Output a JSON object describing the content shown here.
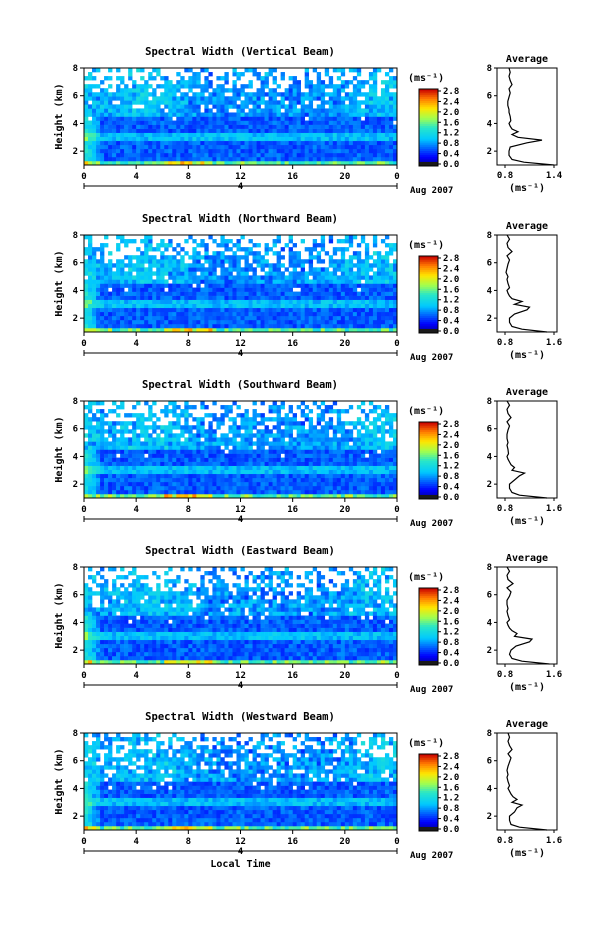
{
  "chart_data": [
    {
      "type": "heatmap",
      "title": "Spectral Width (Vertical Beam)",
      "ylabel": "Height (km)",
      "y_ticks": [
        "2",
        "4",
        "6",
        "8"
      ],
      "ylim": [
        1,
        8
      ],
      "x_ticks": [
        "0",
        "4",
        "8",
        "12",
        "16",
        "20",
        "0"
      ],
      "xlim": [
        0,
        24
      ],
      "date_marker": "4",
      "date_label": "Aug 2007",
      "colorbar": {
        "unit": "(ms⁻¹)",
        "ticks": [
          "0.0",
          "0.4",
          "0.8",
          "1.2",
          "1.6",
          "2.0",
          "2.4",
          "2.8"
        ]
      },
      "average": {
        "title": "Average",
        "xlabel": "(ms⁻¹)",
        "x_ticks": [
          "0.8",
          "1.4"
        ],
        "xlim": [
          0.6,
          1.6
        ],
        "y_ticks": [
          "2",
          "4",
          "6",
          "8"
        ],
        "profile_height": [
          1.0,
          1.2,
          1.4,
          1.7,
          2.0,
          2.3,
          2.6,
          2.8,
          3.0,
          3.2,
          3.4,
          3.6,
          3.8,
          4.0,
          4.2,
          4.5,
          4.8,
          5.0,
          5.3,
          5.6,
          5.9,
          6.2,
          6.5,
          6.8,
          7.1,
          7.4,
          7.7,
          8.0
        ],
        "profile_value": [
          1.55,
          1.05,
          0.85,
          0.8,
          0.8,
          0.82,
          1.1,
          1.35,
          0.95,
          0.85,
          0.95,
          0.85,
          0.82,
          0.8,
          0.83,
          0.82,
          0.8,
          0.8,
          0.78,
          0.78,
          0.8,
          0.82,
          0.8,
          0.85,
          0.82,
          0.8,
          0.82,
          0.8
        ]
      }
    },
    {
      "type": "heatmap",
      "title": "Spectral Width (Northward Beam)",
      "ylabel": "Height (km)",
      "y_ticks": [
        "2",
        "4",
        "6",
        "8"
      ],
      "ylim": [
        1,
        8
      ],
      "x_ticks": [
        "0",
        "4",
        "8",
        "12",
        "16",
        "20",
        "0"
      ],
      "xlim": [
        0,
        24
      ],
      "date_marker": "4",
      "date_label": "Aug 2007",
      "colorbar": {
        "unit": "(ms⁻¹)",
        "ticks": [
          "0.0",
          "0.4",
          "0.8",
          "1.2",
          "1.6",
          "2.0",
          "2.4",
          "2.8"
        ]
      },
      "average": {
        "title": "Average",
        "xlabel": "(ms⁻¹)",
        "x_ticks": [
          "0.8",
          "1.6"
        ],
        "xlim": [
          0.6,
          1.8
        ],
        "y_ticks": [
          "2",
          "4",
          "6",
          "8"
        ],
        "profile_height": [
          1.0,
          1.2,
          1.4,
          1.7,
          2.0,
          2.3,
          2.6,
          2.8,
          3.0,
          3.2,
          3.4,
          3.6,
          3.8,
          4.0,
          4.2,
          4.5,
          4.8,
          5.0,
          5.3,
          5.6,
          5.9,
          6.2,
          6.5,
          6.8,
          7.1,
          7.4,
          7.7,
          8.0
        ],
        "profile_value": [
          1.6,
          1.1,
          0.9,
          0.85,
          0.85,
          0.95,
          1.2,
          1.25,
          0.95,
          1.1,
          0.9,
          0.85,
          0.82,
          0.8,
          0.85,
          0.82,
          0.8,
          0.82,
          0.78,
          0.8,
          0.82,
          0.85,
          0.8,
          0.9,
          0.82,
          0.8,
          0.85,
          0.8
        ]
      }
    },
    {
      "type": "heatmap",
      "title": "Spectral Width (Southward Beam)",
      "ylabel": "Height (km)",
      "y_ticks": [
        "2",
        "4",
        "6",
        "8"
      ],
      "ylim": [
        1,
        8
      ],
      "x_ticks": [
        "0",
        "4",
        "8",
        "12",
        "16",
        "20",
        "0"
      ],
      "xlim": [
        0,
        24
      ],
      "date_marker": "4",
      "date_label": "Aug 2007",
      "colorbar": {
        "unit": "(ms⁻¹)",
        "ticks": [
          "0.0",
          "0.4",
          "0.8",
          "1.2",
          "1.6",
          "2.0",
          "2.4",
          "2.8"
        ]
      },
      "average": {
        "title": "Average",
        "xlabel": "(ms⁻¹)",
        "x_ticks": [
          "0.8",
          "1.6"
        ],
        "xlim": [
          0.6,
          1.8
        ],
        "y_ticks": [
          "2",
          "4",
          "6",
          "8"
        ],
        "profile_height": [
          1.0,
          1.2,
          1.4,
          1.7,
          2.0,
          2.3,
          2.6,
          2.8,
          3.0,
          3.2,
          3.4,
          3.6,
          3.8,
          4.0,
          4.2,
          4.5,
          4.8,
          5.0,
          5.3,
          5.6,
          5.9,
          6.2,
          6.5,
          6.8,
          7.1,
          7.4,
          7.7,
          8.0
        ],
        "profile_value": [
          1.6,
          1.05,
          0.9,
          0.85,
          0.85,
          0.95,
          1.05,
          1.15,
          0.9,
          0.95,
          0.88,
          0.85,
          0.82,
          0.8,
          0.83,
          0.82,
          0.8,
          0.82,
          0.8,
          0.8,
          0.82,
          0.85,
          0.8,
          0.88,
          0.82,
          0.8,
          0.85,
          0.8
        ]
      }
    },
    {
      "type": "heatmap",
      "title": "Spectral Width (Eastward Beam)",
      "ylabel": "Height (km)",
      "y_ticks": [
        "2",
        "4",
        "6",
        "8"
      ],
      "ylim": [
        1,
        8
      ],
      "x_ticks": [
        "0",
        "4",
        "8",
        "12",
        "16",
        "20",
        "0"
      ],
      "xlim": [
        0,
        24
      ],
      "date_marker": "4",
      "date_label": "Aug 2007",
      "colorbar": {
        "unit": "(ms⁻¹)",
        "ticks": [
          "0.0",
          "0.4",
          "0.8",
          "1.2",
          "1.6",
          "2.0",
          "2.4",
          "2.8"
        ]
      },
      "average": {
        "title": "Average",
        "xlabel": "(ms⁻¹)",
        "x_ticks": [
          "0.8",
          "1.6"
        ],
        "xlim": [
          0.6,
          1.8
        ],
        "y_ticks": [
          "2",
          "4",
          "6",
          "8"
        ],
        "profile_height": [
          1.0,
          1.2,
          1.4,
          1.7,
          2.0,
          2.3,
          2.6,
          2.8,
          3.0,
          3.2,
          3.4,
          3.6,
          3.8,
          4.0,
          4.2,
          4.5,
          4.8,
          5.0,
          5.3,
          5.6,
          5.9,
          6.2,
          6.5,
          6.8,
          7.1,
          7.4,
          7.7,
          8.0
        ],
        "profile_value": [
          1.65,
          1.1,
          0.9,
          0.85,
          0.88,
          0.98,
          1.25,
          1.3,
          0.95,
          1.0,
          0.9,
          0.85,
          0.82,
          0.8,
          0.85,
          0.82,
          0.8,
          0.82,
          0.8,
          0.8,
          0.85,
          0.88,
          0.8,
          0.92,
          0.82,
          0.8,
          0.85,
          0.8
        ]
      }
    },
    {
      "type": "heatmap",
      "title": "Spectral Width (Westward Beam)",
      "ylabel": "Height (km)",
      "y_ticks": [
        "2",
        "4",
        "6",
        "8"
      ],
      "ylim": [
        1,
        8
      ],
      "x_ticks": [
        "0",
        "4",
        "8",
        "12",
        "16",
        "20",
        "0"
      ],
      "xlim": [
        0,
        24
      ],
      "date_marker": "4",
      "date_label": "Aug 2007",
      "xlabel": "Local Time",
      "colorbar": {
        "unit": "(ms⁻¹)",
        "ticks": [
          "0.0",
          "0.4",
          "0.8",
          "1.2",
          "1.6",
          "2.0",
          "2.4",
          "2.8"
        ]
      },
      "average": {
        "title": "Average",
        "xlabel": "(ms⁻¹)",
        "x_ticks": [
          "0.8",
          "1.6"
        ],
        "xlim": [
          0.6,
          1.8
        ],
        "y_ticks": [
          "2",
          "4",
          "6",
          "8"
        ],
        "profile_height": [
          1.0,
          1.2,
          1.4,
          1.7,
          2.0,
          2.3,
          2.6,
          2.8,
          3.0,
          3.2,
          3.4,
          3.6,
          3.8,
          4.0,
          4.2,
          4.5,
          4.8,
          5.0,
          5.3,
          5.6,
          5.9,
          6.2,
          6.5,
          6.8,
          7.1,
          7.4,
          7.7,
          8.0
        ],
        "profile_value": [
          1.6,
          1.05,
          0.88,
          0.85,
          0.85,
          0.95,
          1.0,
          1.1,
          0.9,
          1.0,
          0.92,
          0.88,
          0.85,
          0.82,
          0.85,
          0.82,
          0.8,
          0.82,
          0.8,
          0.82,
          0.85,
          0.88,
          0.82,
          0.9,
          0.85,
          0.82,
          0.85,
          0.82
        ]
      }
    }
  ]
}
